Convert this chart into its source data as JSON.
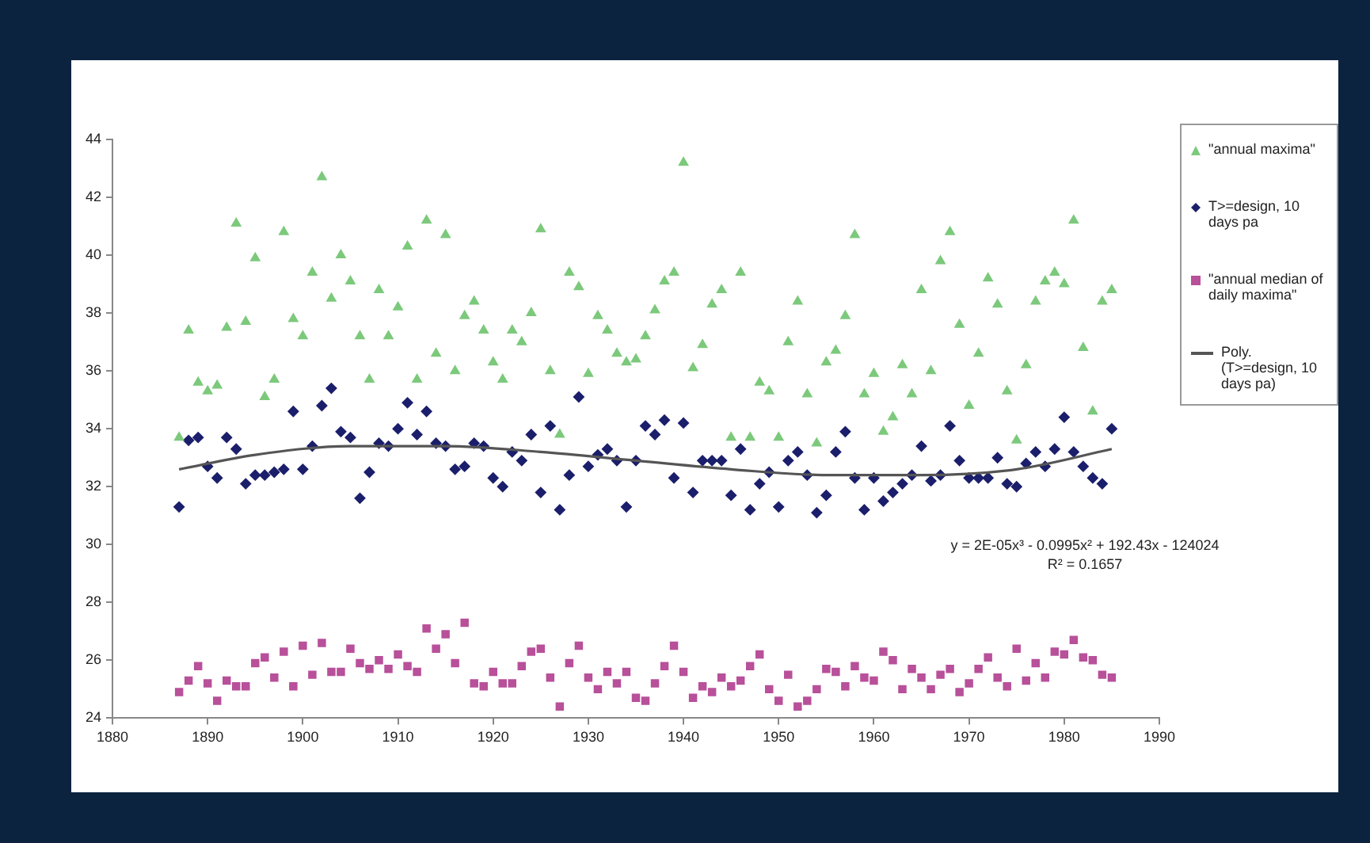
{
  "chart_data": {
    "type": "scatter",
    "x": [
      1887,
      1888,
      1889,
      1890,
      1891,
      1892,
      1893,
      1894,
      1895,
      1896,
      1897,
      1898,
      1899,
      1900,
      1901,
      1902,
      1903,
      1904,
      1905,
      1906,
      1907,
      1908,
      1909,
      1910,
      1911,
      1912,
      1913,
      1914,
      1915,
      1916,
      1917,
      1918,
      1919,
      1920,
      1921,
      1922,
      1923,
      1924,
      1925,
      1926,
      1927,
      1928,
      1929,
      1930,
      1931,
      1932,
      1933,
      1934,
      1935,
      1936,
      1937,
      1938,
      1939,
      1940,
      1941,
      1942,
      1943,
      1944,
      1945,
      1946,
      1947,
      1948,
      1949,
      1950,
      1951,
      1952,
      1953,
      1954,
      1955,
      1956,
      1957,
      1958,
      1959,
      1960,
      1961,
      1962,
      1963,
      1964,
      1965,
      1966,
      1967,
      1968,
      1969,
      1970,
      1971,
      1972,
      1973,
      1974,
      1975,
      1976,
      1977,
      1978,
      1979,
      1980,
      1981,
      1982,
      1983,
      1984,
      1985
    ],
    "series": [
      {
        "name": "\"annual maxima\"",
        "color": "#7cc97c",
        "marker": "triangle",
        "values": [
          33.7,
          37.4,
          35.6,
          35.3,
          35.5,
          37.5,
          41.1,
          37.7,
          39.9,
          35.1,
          35.7,
          40.8,
          37.8,
          37.2,
          39.4,
          42.7,
          38.5,
          40.0,
          39.1,
          37.2,
          35.7,
          38.8,
          37.2,
          38.2,
          40.3,
          35.7,
          41.2,
          36.6,
          40.7,
          36.0,
          37.9,
          38.4,
          37.4,
          36.3,
          35.7,
          37.4,
          37.0,
          38.0,
          40.9,
          36.0,
          33.8,
          39.4,
          38.9,
          35.9,
          37.9,
          37.4,
          36.6,
          36.3,
          36.4,
          37.2,
          38.1,
          39.1,
          39.4,
          43.2,
          36.1,
          36.9,
          38.3,
          38.8,
          33.7,
          39.4,
          33.7,
          35.6,
          35.3,
          33.7,
          37.0,
          38.4,
          35.2,
          33.5,
          36.3,
          36.7,
          37.9,
          40.7,
          35.2,
          35.9,
          33.9,
          34.4,
          36.2,
          35.2,
          38.8,
          36.0,
          39.8,
          40.8,
          37.6,
          34.8,
          36.6,
          39.2,
          38.3,
          35.3,
          33.6,
          36.2,
          38.4,
          39.1,
          39.4,
          39.0,
          41.2,
          36.8,
          34.6,
          38.4,
          38.8
        ]
      },
      {
        "name": "T>=design, 10 days pa",
        "color": "#1b1f6b",
        "marker": "diamond",
        "values": [
          31.3,
          33.6,
          33.7,
          32.7,
          32.3,
          33.7,
          33.3,
          32.1,
          32.4,
          32.4,
          32.5,
          32.6,
          34.6,
          32.6,
          33.4,
          34.8,
          35.4,
          33.9,
          33.7,
          31.6,
          32.5,
          33.5,
          33.4,
          34.0,
          34.9,
          33.8,
          34.6,
          33.5,
          33.4,
          32.6,
          32.7,
          33.5,
          33.4,
          32.3,
          32.0,
          33.2,
          32.9,
          33.8,
          31.8,
          34.1,
          31.2,
          32.4,
          35.1,
          32.7,
          33.1,
          33.3,
          32.9,
          31.3,
          32.9,
          34.1,
          33.8,
          34.3,
          32.3,
          34.2,
          31.8,
          32.9,
          32.9,
          32.9,
          31.7,
          33.3,
          31.2,
          32.1,
          32.5,
          31.3,
          32.9,
          33.2,
          32.4,
          31.1,
          31.7,
          33.2,
          33.9,
          32.3,
          31.2,
          32.3,
          31.5,
          31.8,
          32.1,
          32.4,
          33.4,
          32.2,
          32.4,
          34.1,
          32.9,
          32.3,
          32.3,
          32.3,
          33.0,
          32.1,
          32.0,
          32.8,
          33.2,
          32.7,
          33.3,
          34.4,
          33.2,
          32.7,
          32.3,
          32.1,
          34.0
        ]
      },
      {
        "name": "\"annual median of daily maxima\"",
        "color": "#b8509a",
        "marker": "square",
        "values": [
          24.9,
          25.3,
          25.8,
          25.2,
          24.6,
          25.3,
          25.1,
          25.1,
          25.9,
          26.1,
          25.4,
          26.3,
          25.1,
          26.5,
          25.5,
          26.6,
          25.6,
          25.6,
          26.4,
          25.9,
          25.7,
          26.0,
          25.7,
          26.2,
          25.8,
          25.6,
          27.1,
          26.4,
          26.9,
          25.9,
          27.3,
          25.2,
          25.1,
          25.6,
          25.2,
          25.2,
          25.8,
          26.3,
          26.4,
          25.4,
          24.4,
          25.9,
          26.5,
          25.4,
          25.0,
          25.6,
          25.2,
          25.6,
          24.7,
          24.6,
          25.2,
          25.8,
          26.5,
          25.6,
          24.7,
          25.1,
          24.9,
          25.4,
          25.1,
          25.3,
          25.8,
          26.2,
          25.0,
          24.6,
          25.5,
          24.4,
          24.6,
          25.0,
          25.7,
          25.6,
          25.1,
          25.8,
          25.4,
          25.3,
          26.3,
          26.0,
          25.0,
          25.7,
          25.4,
          25.0,
          25.5,
          25.7,
          24.9,
          25.2,
          25.7,
          26.1,
          25.4,
          25.1,
          26.4,
          25.3,
          25.9,
          25.4,
          26.3,
          26.2,
          26.7,
          26.1,
          26.0,
          25.5,
          25.4
        ]
      },
      {
        "name": "Poly. (T>=design, 10 days pa)",
        "type": "line",
        "color": "#555555",
        "marker": "none",
        "line_style": "solid",
        "x": [
          1887,
          1895,
          1905,
          1915,
          1925,
          1935,
          1945,
          1955,
          1965,
          1975,
          1985
        ],
        "values": [
          32.6,
          33.1,
          33.4,
          33.4,
          33.2,
          32.9,
          32.6,
          32.4,
          32.4,
          32.6,
          33.3
        ]
      }
    ],
    "xlim": [
      1880,
      1990
    ],
    "xticks": [
      1880,
      1890,
      1900,
      1910,
      1920,
      1930,
      1940,
      1950,
      1960,
      1970,
      1980,
      1990
    ],
    "ylim": [
      24,
      44
    ],
    "yticks": [
      24,
      26,
      28,
      30,
      32,
      34,
      36,
      38,
      40,
      42,
      44
    ],
    "grid": false,
    "legend": "right",
    "annotations": [
      "y = 2E-05x³ - 0.0995x² + 192.43x - 124024",
      "R² = 0.1657"
    ]
  }
}
